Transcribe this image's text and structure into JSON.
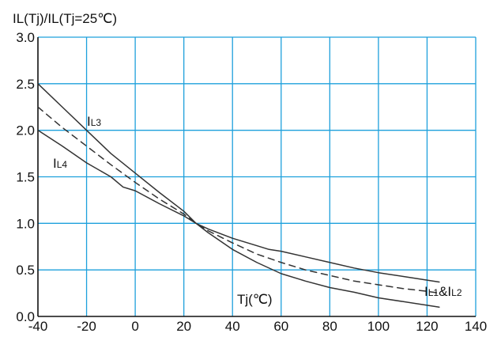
{
  "chart_data": {
    "type": "line",
    "title": "",
    "ylabel": "IL(Tj)/IL(Tj=25℃)",
    "xlabel": "Tj(℃)",
    "xlim": [
      -40,
      140
    ],
    "ylim": [
      0,
      3.0
    ],
    "x_ticks": [
      -40,
      -20,
      0,
      20,
      40,
      60,
      80,
      100,
      120,
      140
    ],
    "y_ticks": [
      0.0,
      0.5,
      1.0,
      1.5,
      2.0,
      2.5,
      3.0
    ],
    "x_tick_labels": [
      "-40",
      "-20",
      "0",
      "20",
      "40",
      "60",
      "80",
      "100",
      "120",
      "140"
    ],
    "y_tick_labels": [
      "0.0",
      "0.5",
      "1.0",
      "1.5",
      "2.0",
      "2.5",
      "3.0"
    ],
    "grid": true,
    "grid_color": "#1ea0dc",
    "line_color": "#333333",
    "series": [
      {
        "name": "IL3",
        "style": "solid",
        "points": [
          [
            -40,
            2.5
          ],
          [
            -30,
            2.25
          ],
          [
            -20,
            2.0
          ],
          [
            -10,
            1.75
          ],
          [
            0,
            1.54
          ],
          [
            10,
            1.33
          ],
          [
            20,
            1.13
          ],
          [
            25,
            1.0
          ],
          [
            30,
            0.9
          ],
          [
            40,
            0.72
          ],
          [
            50,
            0.58
          ],
          [
            60,
            0.46
          ],
          [
            70,
            0.38
          ],
          [
            80,
            0.31
          ],
          [
            90,
            0.26
          ],
          [
            100,
            0.2
          ],
          [
            110,
            0.16
          ],
          [
            120,
            0.12
          ],
          [
            125,
            0.1
          ]
        ]
      },
      {
        "name": "IL4",
        "style": "solid",
        "points": [
          [
            -40,
            2.0
          ],
          [
            -30,
            1.83
          ],
          [
            -20,
            1.65
          ],
          [
            -10,
            1.5
          ],
          [
            -5,
            1.39
          ],
          [
            0,
            1.35
          ],
          [
            10,
            1.21
          ],
          [
            20,
            1.08
          ],
          [
            25,
            1.0
          ],
          [
            30,
            0.94
          ],
          [
            40,
            0.84
          ],
          [
            50,
            0.76
          ],
          [
            55,
            0.72
          ],
          [
            60,
            0.7
          ],
          [
            70,
            0.64
          ],
          [
            80,
            0.58
          ],
          [
            90,
            0.52
          ],
          [
            100,
            0.47
          ],
          [
            110,
            0.43
          ],
          [
            120,
            0.39
          ],
          [
            125,
            0.37
          ]
        ]
      },
      {
        "name": "IL1&IL2",
        "style": "dashed",
        "points": [
          [
            -40,
            2.25
          ],
          [
            -30,
            2.03
          ],
          [
            -20,
            1.83
          ],
          [
            -10,
            1.63
          ],
          [
            0,
            1.44
          ],
          [
            10,
            1.26
          ],
          [
            20,
            1.1
          ],
          [
            25,
            1.0
          ],
          [
            30,
            0.92
          ],
          [
            40,
            0.79
          ],
          [
            50,
            0.67
          ],
          [
            60,
            0.58
          ],
          [
            70,
            0.5
          ],
          [
            80,
            0.44
          ],
          [
            90,
            0.38
          ],
          [
            100,
            0.34
          ],
          [
            110,
            0.3
          ],
          [
            120,
            0.27
          ],
          [
            125,
            0.25
          ]
        ]
      }
    ],
    "labels": {
      "il3_main": "I",
      "il3_sub": "L3",
      "il4_main": "I",
      "il4_sub": "L4",
      "il12_main1": "I",
      "il12_sub1": "L1",
      "il12_amp": "&I",
      "il12_sub2": "L2"
    }
  }
}
